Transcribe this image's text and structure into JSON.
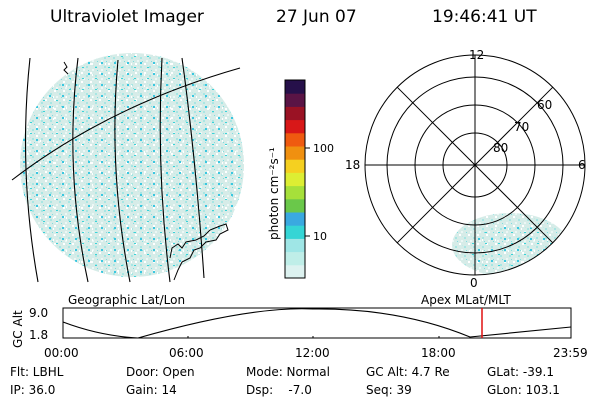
{
  "header": {
    "title": "Ultraviolet Imager",
    "date": "27 Jun 07",
    "time": "19:46:41 UT"
  },
  "colorbar": {
    "label": "photon cm⁻²s⁻¹",
    "ticks": [
      "100",
      "10"
    ],
    "colors": [
      "#ddf2f0",
      "#bfeee8",
      "#9fe6e6",
      "#35d5d5",
      "#3aa9e0",
      "#6ac84a",
      "#a6e03a",
      "#ddee33",
      "#f5d020",
      "#f09010",
      "#ef5a10",
      "#d81818",
      "#9a1224",
      "#5a1445",
      "#26104a"
    ]
  },
  "polar": {
    "lat_labels": [
      "60",
      "70",
      "80"
    ],
    "mlt_labels": {
      "top": "12",
      "left": "18",
      "right": "6",
      "bottom": "0"
    }
  },
  "orbit": {
    "ylabel": "GC Alt",
    "y_ticks": [
      "9.0",
      "1.8"
    ],
    "left_caption": "Geographic Lat/Lon",
    "right_caption": "Apex MLat/MLT",
    "x_ticks": [
      "00:00",
      "06:00",
      "12:00",
      "18:00",
      "23:59"
    ],
    "current_time_hours": 19.78,
    "ylim": [
      1.8,
      9.0
    ]
  },
  "info": {
    "flt": "Flt: LBHL",
    "door": "Door: Open",
    "mode": "Mode: Normal",
    "gcalt": "GC Alt: 4.7 Re",
    "glat": "GLat: -39.1",
    "ip": "IP: 36.0",
    "gain": "Gain: 14",
    "dsp": "Dsp:    -7.0",
    "seq": "Seq: 39",
    "glon": "GLon: 103.1"
  }
}
